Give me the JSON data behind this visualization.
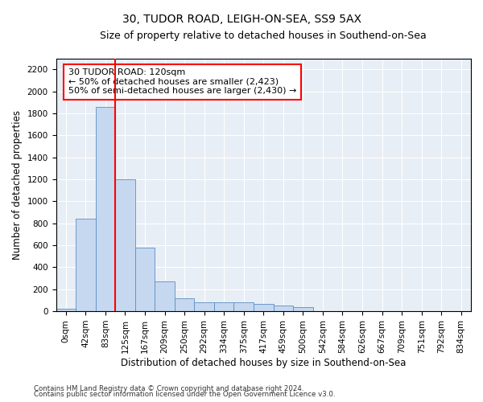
{
  "title_line1": "30, TUDOR ROAD, LEIGH-ON-SEA, SS9 5AX",
  "title_line2": "Size of property relative to detached houses in Southend-on-Sea",
  "xlabel": "Distribution of detached houses by size in Southend-on-Sea",
  "ylabel": "Number of detached properties",
  "bar_labels": [
    "0sqm",
    "42sqm",
    "83sqm",
    "125sqm",
    "167sqm",
    "209sqm",
    "250sqm",
    "292sqm",
    "334sqm",
    "375sqm",
    "417sqm",
    "459sqm",
    "500sqm",
    "542sqm",
    "584sqm",
    "626sqm",
    "667sqm",
    "709sqm",
    "751sqm",
    "792sqm",
    "834sqm"
  ],
  "bar_values": [
    20,
    840,
    1860,
    1200,
    580,
    270,
    120,
    80,
    80,
    80,
    70,
    50,
    40,
    0,
    0,
    0,
    0,
    0,
    0,
    0,
    0
  ],
  "bar_color": "#c5d8f0",
  "bar_edge_color": "#5a8fc2",
  "vline_x": 2.5,
  "vline_color": "red",
  "annotation_text": "30 TUDOR ROAD: 120sqm\n← 50% of detached houses are smaller (2,423)\n50% of semi-detached houses are larger (2,430) →",
  "annotation_box_color": "white",
  "annotation_box_edge": "red",
  "ylim": [
    0,
    2300
  ],
  "yticks": [
    0,
    200,
    400,
    600,
    800,
    1000,
    1200,
    1400,
    1600,
    1800,
    2000,
    2200
  ],
  "bg_color": "#e8eef5",
  "footnote1": "Contains HM Land Registry data © Crown copyright and database right 2024.",
  "footnote2": "Contains public sector information licensed under the Open Government Licence v3.0.",
  "title_fontsize": 10,
  "subtitle_fontsize": 9,
  "axis_label_fontsize": 8.5,
  "tick_fontsize": 7.5,
  "annot_fontsize": 8
}
